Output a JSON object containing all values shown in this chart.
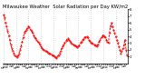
{
  "title": "Milwaukee Weather  Solar Radiation per Day KW/m2",
  "line_color": "#ff0000",
  "bg_color": "#ffffff",
  "grid_color": "#c0c0c0",
  "ylim": [
    0,
    8
  ],
  "yticks": [
    1,
    2,
    3,
    4,
    5,
    6,
    7,
    8
  ],
  "title_fontsize": 3.8,
  "tick_fontsize": 2.8,
  "values": [
    7.2,
    6.8,
    6.0,
    5.5,
    4.8,
    4.2,
    3.5,
    2.8,
    2.2,
    1.8,
    1.5,
    1.2,
    1.0,
    0.9,
    1.1,
    1.5,
    2.0,
    2.5,
    3.2,
    3.8,
    4.5,
    4.8,
    5.0,
    5.2,
    5.5,
    5.3,
    5.0,
    4.8,
    4.5,
    4.2,
    3.9,
    3.7,
    3.5,
    3.2,
    3.0,
    2.8,
    2.5,
    2.3,
    2.1,
    2.0,
    1.9,
    1.8,
    1.7,
    1.6,
    1.5,
    1.4,
    1.3,
    1.2,
    1.1,
    1.0,
    0.9,
    0.8,
    1.0,
    1.2,
    1.5,
    1.8,
    2.2,
    2.5,
    2.8,
    3.0,
    3.3,
    3.5,
    3.7,
    3.5,
    3.3,
    3.1,
    2.9,
    2.8,
    2.7,
    2.6,
    2.5,
    2.4,
    2.5,
    2.7,
    3.0,
    3.2,
    3.4,
    3.6,
    3.8,
    3.9,
    4.0,
    3.8,
    3.5,
    3.3,
    3.1,
    3.0,
    2.9,
    2.8,
    2.7,
    2.6,
    2.5,
    2.8,
    3.2,
    3.5,
    3.8,
    4.0,
    4.2,
    4.0,
    3.8,
    3.5,
    3.2,
    3.0,
    4.5,
    5.5,
    6.0,
    5.5,
    5.0,
    4.5,
    4.0,
    3.5,
    3.0,
    2.5,
    2.0,
    1.5,
    1.8,
    2.2,
    2.8,
    3.5,
    2.0,
    1.2
  ],
  "grid_positions": [
    0,
    12,
    24,
    36,
    48,
    60,
    72,
    84,
    96,
    108
  ],
  "x_labels_every": 2
}
